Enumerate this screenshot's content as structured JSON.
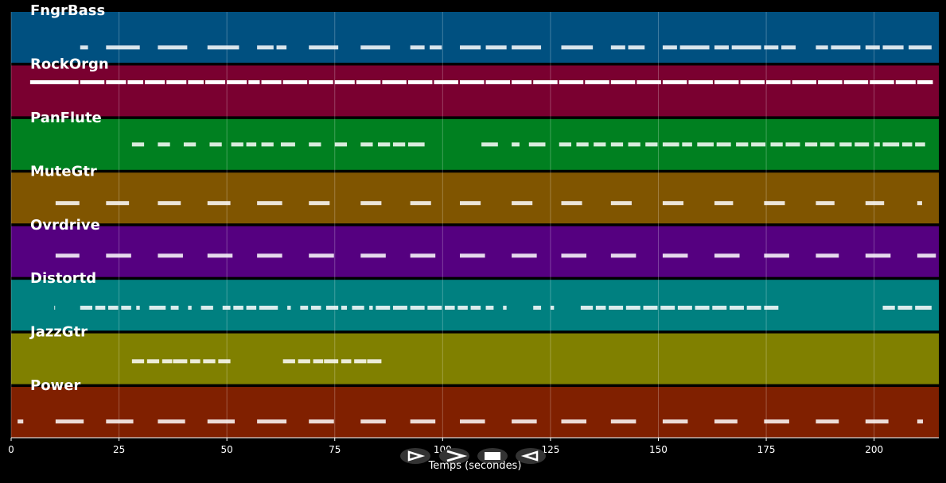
{
  "chart_data": {
    "type": "pianoroll",
    "xlabel": "Temps (secondes)",
    "xlim": [
      0,
      215
    ],
    "xticks": [
      0,
      25,
      50,
      75,
      100,
      125,
      150,
      175,
      200
    ],
    "grid": true,
    "series": [
      {
        "name": "FngrBass",
        "color": "#005080",
        "starts": [
          16,
          22,
          34,
          45.5,
          57,
          61.5,
          69,
          81,
          92.5,
          97,
          104,
          110,
          116,
          127.5,
          139,
          143,
          151,
          155,
          163,
          167,
          174.5,
          178.5,
          186.5,
          190,
          198,
          202,
          208
        ],
        "ends": [
          18,
          30,
          41,
          53,
          61,
          64,
          76,
          88,
          96,
          100,
          109,
          115,
          123,
          135,
          142.5,
          147,
          154.5,
          162,
          166.5,
          174,
          178,
          182,
          189.5,
          197,
          201.5,
          207,
          213.5
        ]
      },
      {
        "name": "RockOrgn",
        "color": "#7a0030",
        "starts": [
          4.4,
          16,
          22,
          27,
          31,
          36,
          41,
          45,
          50,
          55,
          58,
          63,
          69,
          75,
          80,
          86,
          92,
          98,
          104,
          110,
          116,
          121,
          127,
          133,
          139,
          145,
          151,
          157,
          163,
          169,
          175,
          181,
          187,
          193,
          199,
          205,
          210
        ],
        "ends": [
          15.8,
          21.8,
          26.8,
          30.8,
          35.8,
          40.8,
          44.8,
          49.8,
          54.8,
          57.8,
          62.8,
          68.8,
          74.8,
          79.8,
          85.8,
          91.8,
          97.8,
          103.8,
          109.8,
          115.8,
          120.8,
          126.8,
          132.8,
          138.8,
          144.8,
          150.8,
          156.8,
          162.8,
          168.8,
          174.8,
          180.8,
          186.8,
          192.8,
          198.8,
          204.8,
          209.8,
          213.8
        ]
      },
      {
        "name": "PanFlute",
        "color": "#008020",
        "starts": [
          28,
          34,
          40,
          46,
          51,
          54.5,
          58,
          62.5,
          69,
          75,
          81,
          85,
          88.5,
          92,
          109,
          116,
          120,
          127,
          131,
          135,
          139,
          143,
          147,
          151,
          155.5,
          159,
          163.5,
          168,
          171.5,
          176,
          179.5,
          184,
          187.5,
          192,
          195.5,
          200,
          202,
          206.5,
          209.5
        ],
        "ends": [
          31,
          37,
          43,
          49,
          54,
          57,
          61,
          66,
          72,
          78,
          84,
          88,
          91.5,
          96,
          113,
          118,
          124,
          130,
          134,
          138,
          142,
          146,
          150,
          155,
          158,
          163,
          167,
          171,
          175,
          179,
          183,
          187,
          191,
          195,
          199,
          201.5,
          206,
          209,
          212
        ]
      },
      {
        "name": "MuteGtr",
        "color": "#805500",
        "starts": [
          10.3,
          22,
          34,
          45.5,
          57,
          69,
          81,
          92.5,
          104,
          116,
          127.5,
          139,
          151,
          163,
          174.5,
          186.5,
          198,
          210
        ],
        "ends": [
          16,
          27.5,
          39.5,
          51,
          63,
          74,
          86,
          97.5,
          109,
          121,
          132.5,
          144,
          156,
          167.5,
          179.5,
          191,
          202.5,
          211.3
        ]
      },
      {
        "name": "Ovrdrive",
        "color": "#550080",
        "starts": [
          10.3,
          22,
          34,
          45.5,
          57,
          69,
          81,
          92.5,
          104,
          116,
          127.5,
          139,
          151,
          163,
          174.5,
          186.5,
          198,
          210
        ],
        "ends": [
          16,
          28,
          40,
          51.5,
          63,
          75,
          87,
          98.5,
          110,
          122,
          133.5,
          145,
          157,
          169,
          180.5,
          192,
          204,
          214.5
        ]
      },
      {
        "name": "Distortd",
        "color": "#008080",
        "starts": [
          10,
          16,
          19.5,
          22.5,
          25.5,
          29,
          32,
          37,
          41,
          44,
          49,
          51.5,
          54.5,
          57.5,
          64,
          67,
          69.5,
          73,
          76.5,
          79,
          83,
          84.5,
          88.5,
          92.5,
          96.5,
          100.5,
          103.5,
          106.5,
          110,
          114,
          121,
          125,
          132,
          135.5,
          138.5,
          142.5,
          146.5,
          150.5,
          154.5,
          158.5,
          162.5,
          166.5,
          170.5,
          174.5,
          202,
          205.5,
          209.5
        ],
        "ends": [
          10.3,
          19,
          22,
          25,
          28,
          30,
          36,
          39,
          42,
          47,
          51,
          54,
          57,
          62,
          65,
          69,
          72,
          76,
          78,
          82,
          84,
          88,
          92,
          96,
          100,
          103,
          106,
          109,
          112,
          115,
          123,
          126,
          135,
          138,
          142,
          146,
          150,
          154,
          158,
          162,
          166,
          170,
          174,
          178,
          205,
          209,
          213.5
        ]
      },
      {
        "name": "JazzGtr",
        "color": "#808000",
        "starts": [
          28,
          31.5,
          35,
          37.5,
          41.5,
          44.5,
          48,
          63,
          66.5,
          70,
          72.5,
          76.5,
          79.5,
          82.5
        ],
        "ends": [
          31,
          34.5,
          37.5,
          41,
          44,
          47.5,
          51,
          66,
          69.5,
          72.5,
          76,
          79,
          82.5,
          86
        ]
      },
      {
        "name": "Power",
        "color": "#802000",
        "starts": [
          1.5,
          10.3,
          22,
          34,
          45.5,
          57,
          69,
          81,
          92.5,
          104,
          116,
          127.5,
          139,
          151,
          163,
          174.5,
          186.5,
          198,
          210
        ],
        "ends": [
          3,
          17,
          28.5,
          40.5,
          52,
          64,
          75,
          87,
          98.5,
          110,
          122,
          133.5,
          145,
          157,
          168.5,
          180.5,
          192,
          203.5,
          211.5
        ]
      }
    ]
  }
}
